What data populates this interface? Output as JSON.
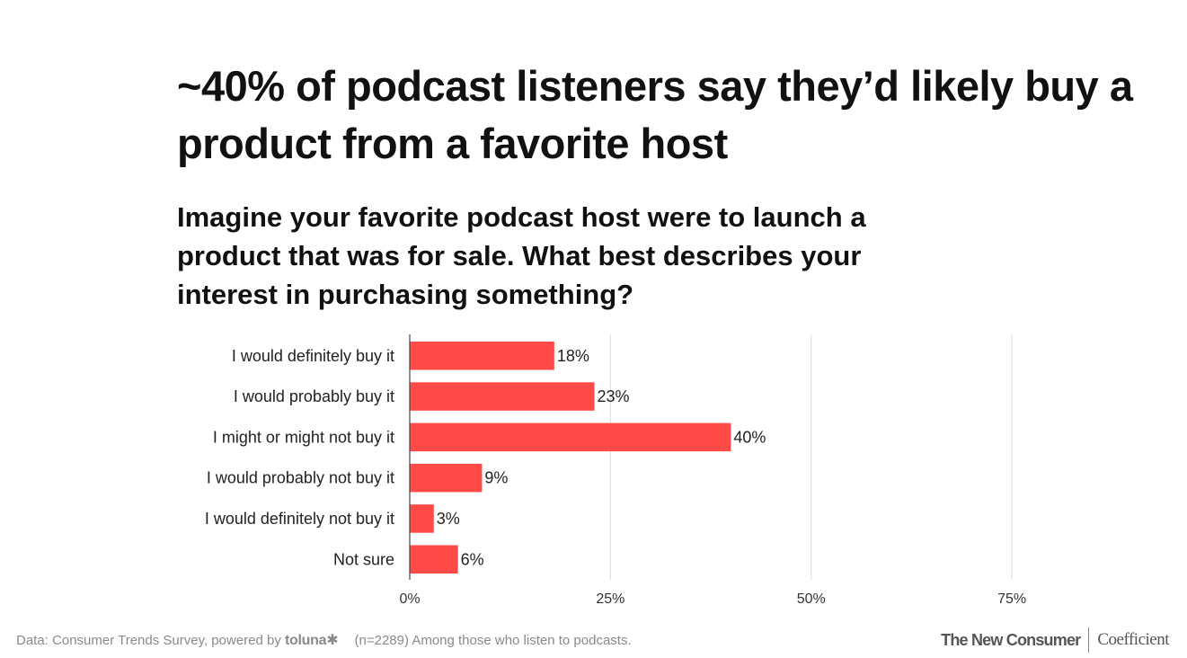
{
  "title": "~40% of podcast listeners say they’d likely buy a product from a favorite host",
  "question": "Imagine your favorite podcast host were to launch a product that was for sale. What best describes your interest in purchasing something?",
  "chart_data": {
    "type": "bar",
    "orientation": "horizontal",
    "categories": [
      "I would definitely buy it",
      "I would probably buy it",
      "I might or might not buy it",
      "I would probably not buy it",
      "I would definitely not buy it",
      "Not sure"
    ],
    "values": [
      18,
      23,
      40,
      9,
      3,
      6
    ],
    "value_labels": [
      "18%",
      "23%",
      "40%",
      "9%",
      "3%",
      "6%"
    ],
    "xlim": [
      0,
      75
    ],
    "xticks": [
      0,
      25,
      50,
      75
    ],
    "xtick_labels": [
      "0%",
      "25%",
      "50%",
      "75%"
    ],
    "grid": true,
    "bar_color": "#ff4a47"
  },
  "footer": {
    "source_prefix": "Data: Consumer Trends Survey, powered by",
    "source_brand": "toluna✱",
    "note": "(n=2289) Among those who listen to podcasts."
  },
  "logos": {
    "primary": "The New Consumer",
    "secondary": "Coefficient"
  }
}
